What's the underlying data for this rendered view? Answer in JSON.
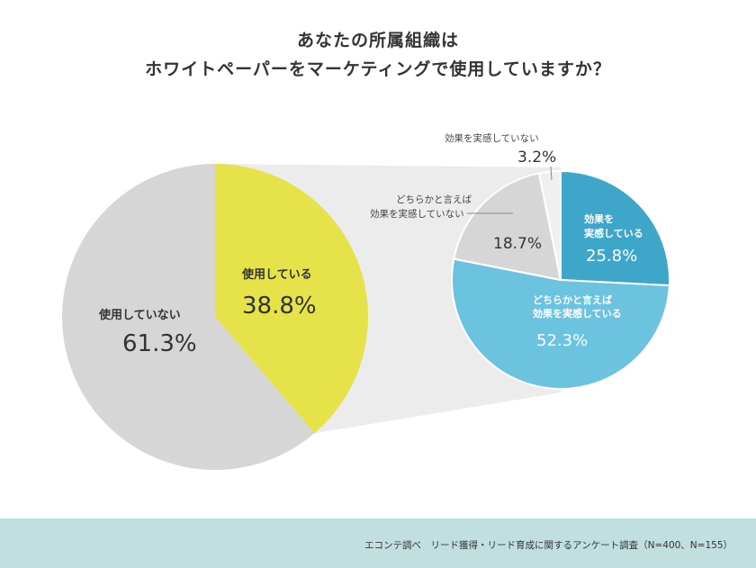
{
  "title": {
    "line1": "あなたの所属組織は",
    "line2": "ホワイトペーパーをマーケティングで使用していますか？"
  },
  "footer": {
    "note": "エコンテ調べ　リード獲得・リード育成に関するアンケート調査（N=400、N=155）"
  },
  "colors": {
    "yellow": "#e6e24a",
    "gray": "#d6d6d6",
    "light_gray": "#ececec",
    "teal_dark": "#3ea6c9",
    "teal_light": "#6cc3e0",
    "pale": "#f0f0f0",
    "footer_bg": "#c2dfe0"
  },
  "chart_data": [
    {
      "type": "pie",
      "slices": [
        {
          "label": "使用している",
          "value": 38.8,
          "value_label": "38.8%",
          "color": "#e6e24a"
        },
        {
          "label": "使用していない",
          "value": 61.3,
          "value_label": "61.3%",
          "color": "#d6d6d6"
        }
      ]
    },
    {
      "type": "pie",
      "slices": [
        {
          "label": "効果を実感している",
          "label_lines": [
            "効果を",
            "実感している"
          ],
          "value": 25.8,
          "value_label": "25.8%",
          "color": "#3ea6c9"
        },
        {
          "label": "どちらかと言えば効果を実感している",
          "label_lines": [
            "どちらかと言えば",
            "効果を実感している"
          ],
          "value": 52.3,
          "value_label": "52.3%",
          "color": "#6cc3e0"
        },
        {
          "label": "どちらかと言えば効果を実感していない",
          "label_lines": [
            "どちらかと言えば",
            "効果を実感していない"
          ],
          "value": 18.7,
          "value_label": "18.7%",
          "color": "#d6d6d6"
        },
        {
          "label": "効果を実感していない",
          "label_lines": [
            "効果を実感していない"
          ],
          "value": 3.2,
          "value_label": "3.2%",
          "color": "#f0f0f0"
        }
      ]
    }
  ]
}
